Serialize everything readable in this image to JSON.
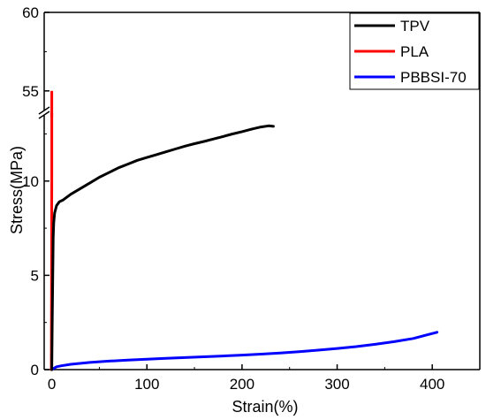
{
  "chart_data": {
    "type": "line",
    "xlabel": "Strain(%)",
    "ylabel": "Stress(MPa)",
    "x_ticks": [
      0,
      100,
      200,
      300,
      400
    ],
    "xlim": [
      -8,
      450
    ],
    "y_lower": {
      "range": [
        0,
        13.6
      ],
      "ticks": [
        0,
        5,
        10
      ]
    },
    "y_upper": {
      "range": [
        53.3,
        60
      ],
      "ticks": [
        55,
        60
      ]
    },
    "axis_break": "between 13.6 and 53.3 MPa",
    "legend_position": "top-right",
    "series": [
      {
        "name": "TPV",
        "color": "#000000",
        "points": [
          [
            0,
            0
          ],
          [
            0.5,
            2.5
          ],
          [
            1,
            5
          ],
          [
            1.5,
            7
          ],
          [
            2,
            7.8
          ],
          [
            3,
            8.3
          ],
          [
            5,
            8.7
          ],
          [
            8,
            8.9
          ],
          [
            12,
            9.0
          ],
          [
            20,
            9.3
          ],
          [
            30,
            9.6
          ],
          [
            40,
            9.9
          ],
          [
            50,
            10.2
          ],
          [
            60,
            10.45
          ],
          [
            70,
            10.7
          ],
          [
            80,
            10.9
          ],
          [
            90,
            11.1
          ],
          [
            100,
            11.25
          ],
          [
            110,
            11.4
          ],
          [
            120,
            11.55
          ],
          [
            130,
            11.7
          ],
          [
            140,
            11.85
          ],
          [
            150,
            11.98
          ],
          [
            160,
            12.1
          ],
          [
            170,
            12.23
          ],
          [
            180,
            12.36
          ],
          [
            190,
            12.5
          ],
          [
            200,
            12.62
          ],
          [
            210,
            12.75
          ],
          [
            220,
            12.87
          ],
          [
            228,
            12.93
          ],
          [
            233,
            12.9
          ]
        ]
      },
      {
        "name": "PLA",
        "color": "#ff0000",
        "points": [
          [
            -0.5,
            0
          ],
          [
            -0.3,
            4
          ],
          [
            -0.1,
            8
          ],
          [
            0,
            10.5
          ],
          [
            0,
            13.6
          ]
        ],
        "upper_points": [
          [
            0,
            53.3
          ],
          [
            0,
            55
          ]
        ]
      },
      {
        "name": "PBBSI-70",
        "color": "#0000ff",
        "points": [
          [
            0,
            0
          ],
          [
            5,
            0.15
          ],
          [
            10,
            0.2
          ],
          [
            20,
            0.28
          ],
          [
            40,
            0.38
          ],
          [
            60,
            0.45
          ],
          [
            80,
            0.5
          ],
          [
            100,
            0.55
          ],
          [
            120,
            0.6
          ],
          [
            140,
            0.64
          ],
          [
            160,
            0.68
          ],
          [
            180,
            0.72
          ],
          [
            200,
            0.77
          ],
          [
            220,
            0.82
          ],
          [
            240,
            0.88
          ],
          [
            260,
            0.95
          ],
          [
            280,
            1.03
          ],
          [
            300,
            1.12
          ],
          [
            320,
            1.22
          ],
          [
            340,
            1.34
          ],
          [
            360,
            1.48
          ],
          [
            380,
            1.65
          ],
          [
            395,
            1.85
          ],
          [
            405,
            1.98
          ]
        ]
      }
    ]
  }
}
